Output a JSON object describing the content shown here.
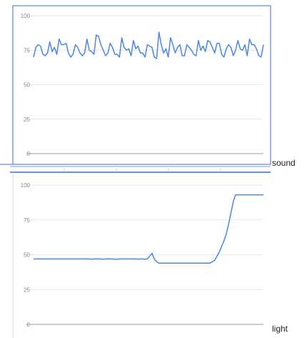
{
  "chart_data": [
    {
      "type": "line",
      "label": "sound",
      "ylim": [
        0,
        100
      ],
      "yticks": [
        0,
        25,
        50,
        75,
        100
      ],
      "grid": true,
      "series": [
        {
          "color": "#4a86e8",
          "values": [
            70,
            77,
            79,
            78,
            72,
            71,
            73,
            81,
            74,
            77,
            72,
            83,
            79,
            79,
            80,
            73,
            70,
            72,
            79,
            77,
            73,
            71,
            73,
            83,
            75,
            74,
            72,
            86,
            85,
            79,
            75,
            71,
            73,
            80,
            77,
            72,
            72,
            70,
            84,
            77,
            75,
            76,
            71,
            82,
            76,
            78,
            73,
            73,
            70,
            79,
            78,
            77,
            70,
            69,
            88,
            79,
            73,
            76,
            70,
            84,
            79,
            73,
            77,
            79,
            71,
            71,
            79,
            77,
            75,
            72,
            71,
            82,
            75,
            78,
            74,
            82,
            81,
            77,
            73,
            80,
            80,
            72,
            70,
            76,
            79,
            77,
            71,
            75,
            82,
            76,
            75,
            79,
            71,
            83,
            79,
            79,
            76,
            71,
            70,
            79
          ]
        }
      ]
    },
    {
      "type": "line",
      "label": "light",
      "ylim": [
        0,
        100
      ],
      "yticks": [
        0,
        25,
        50,
        75,
        100
      ],
      "grid": true,
      "series": [
        {
          "color": "#4a86e8",
          "values": [
            47,
            47,
            47,
            47,
            47,
            47,
            47,
            47,
            47,
            47,
            47,
            47,
            47,
            47,
            47,
            47,
            47,
            47,
            47,
            47,
            47,
            47,
            47,
            47,
            47,
            46.8,
            47,
            47,
            47,
            47,
            46.8,
            47,
            47,
            47,
            47,
            46.8,
            46.8,
            47,
            47,
            47,
            47,
            47,
            47,
            47,
            47,
            46.8,
            47,
            47,
            46.8,
            47,
            49,
            51,
            47,
            45,
            44,
            44,
            44,
            44,
            44,
            44,
            44,
            44,
            44,
            44,
            44,
            44,
            44,
            44,
            44,
            44,
            44,
            44,
            44,
            44,
            44,
            44,
            44,
            45,
            46,
            49,
            52,
            56,
            60,
            65,
            72,
            80,
            88,
            93,
            93,
            93,
            93,
            93,
            93,
            93,
            93,
            93,
            93,
            93,
            93,
            93
          ]
        }
      ]
    }
  ]
}
